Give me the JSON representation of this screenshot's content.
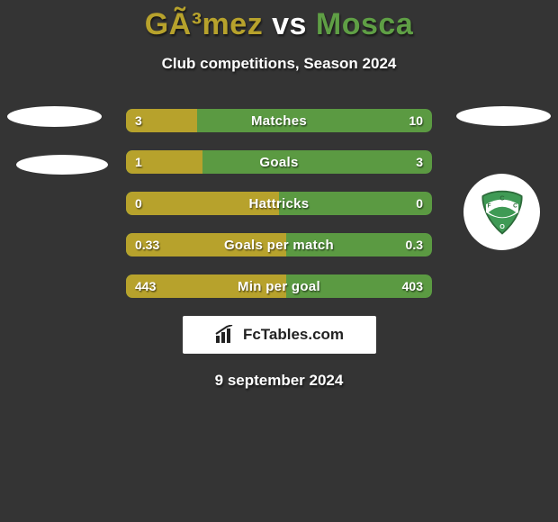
{
  "title": {
    "player1": "GÃ³mez",
    "vs": " vs ",
    "player2": "Mosca",
    "player1_color": "#b7a22c",
    "player2_color": "#5f9f45",
    "title_fontsize": 34
  },
  "subtitle": "Club competitions, Season 2024",
  "background_color": "#343434",
  "stats": [
    {
      "label": "Matches",
      "left_val": "3",
      "right_val": "10",
      "left_pct": 23.1,
      "left_color": "#b7a22c",
      "right_color": "#5b9a42"
    },
    {
      "label": "Goals",
      "left_val": "1",
      "right_val": "3",
      "left_pct": 25.0,
      "left_color": "#b7a22c",
      "right_color": "#5b9a42"
    },
    {
      "label": "Hattricks",
      "left_val": "0",
      "right_val": "0",
      "left_pct": 50.0,
      "left_color": "#b7a22c",
      "right_color": "#5b9a42"
    },
    {
      "label": "Goals per match",
      "left_val": "0.33",
      "right_val": "0.3",
      "left_pct": 52.4,
      "left_color": "#b7a22c",
      "right_color": "#5b9a42"
    },
    {
      "label": "Min per goal",
      "left_val": "443",
      "right_val": "403",
      "left_pct": 52.4,
      "left_color": "#b7a22c",
      "right_color": "#5b9a42"
    }
  ],
  "club_badge": {
    "main_color": "#3f9a55",
    "alt_color": "#ffffff",
    "letters": [
      "F",
      "C",
      "C",
      "O"
    ]
  },
  "brand": "FcTables.com",
  "date": "9 september 2024"
}
